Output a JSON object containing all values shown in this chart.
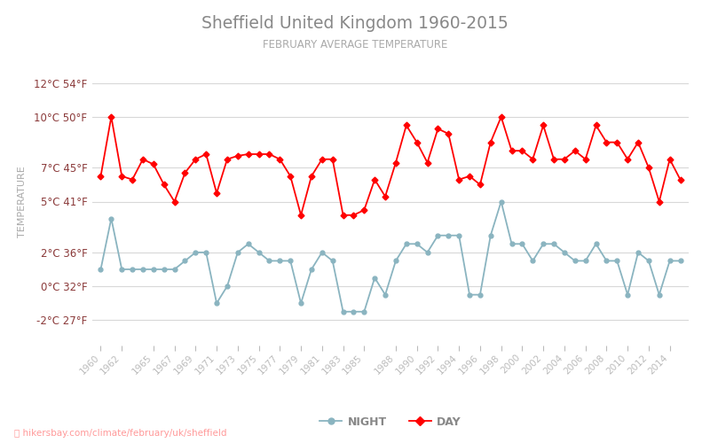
{
  "title": "Sheffield United Kingdom 1960-2015",
  "subtitle": "FEBRUARY AVERAGE TEMPERATURE",
  "ylabel": "TEMPERATURE",
  "watermark": "hikersbay.com/climate/february/uk/sheffield",
  "years": [
    1960,
    1961,
    1962,
    1963,
    1964,
    1965,
    1966,
    1967,
    1968,
    1969,
    1970,
    1971,
    1972,
    1973,
    1974,
    1975,
    1976,
    1977,
    1978,
    1979,
    1980,
    1981,
    1982,
    1983,
    1984,
    1985,
    1986,
    1987,
    1988,
    1989,
    1990,
    1991,
    1992,
    1993,
    1994,
    1995,
    1996,
    1997,
    1998,
    1999,
    2000,
    2001,
    2002,
    2003,
    2004,
    2005,
    2006,
    2007,
    2008,
    2009,
    2010,
    2011,
    2012,
    2013,
    2014,
    2015
  ],
  "day": [
    6.5,
    10.0,
    6.5,
    6.3,
    7.5,
    7.2,
    6.0,
    5.0,
    6.7,
    7.5,
    7.8,
    5.5,
    7.5,
    7.7,
    7.8,
    7.8,
    7.8,
    7.5,
    6.5,
    4.2,
    6.5,
    7.5,
    7.5,
    4.2,
    4.2,
    4.5,
    6.3,
    5.3,
    7.3,
    9.5,
    8.5,
    7.3,
    9.3,
    9.0,
    6.3,
    6.5,
    6.0,
    8.5,
    10.0,
    8.0,
    8.0,
    7.5,
    9.5,
    7.5,
    7.5,
    8.0,
    7.5,
    9.5,
    8.5,
    8.5,
    7.5,
    8.5,
    7.0,
    5.0,
    7.5,
    6.3
  ],
  "night": [
    1.0,
    4.0,
    1.0,
    1.0,
    1.0,
    1.0,
    1.0,
    1.0,
    1.5,
    2.0,
    2.0,
    -1.0,
    0.0,
    2.0,
    2.5,
    2.0,
    1.5,
    1.5,
    1.5,
    -1.0,
    1.0,
    2.0,
    1.5,
    -1.5,
    -1.5,
    -1.5,
    0.5,
    -0.5,
    1.5,
    2.5,
    2.5,
    2.0,
    3.0,
    3.0,
    3.0,
    -0.5,
    -0.5,
    3.0,
    5.0,
    2.5,
    2.5,
    1.5,
    2.5,
    2.5,
    2.0,
    1.5,
    1.5,
    2.5,
    1.5,
    1.5,
    -0.5,
    2.0,
    1.5,
    -0.5,
    1.5,
    1.5
  ],
  "day_color": "#ff0000",
  "night_color": "#8ab4c0",
  "background_color": "#ffffff",
  "grid_color": "#d8d8d8",
  "title_color": "#888888",
  "subtitle_color": "#aaaaaa",
  "ylabel_color": "#aaaaaa",
  "tick_label_color": "#8b3a3a",
  "xtick_label_color": "#9999aa",
  "legend_night": "NIGHT",
  "legend_day": "DAY",
  "yticks_c": [
    -2,
    0,
    2,
    5,
    7,
    10,
    12
  ],
  "yticks_f": [
    27,
    32,
    36,
    41,
    45,
    50,
    54
  ],
  "ymin": -3.5,
  "ymax": 13.5,
  "xtick_labels": [
    "1960",
    "1962",
    "1965",
    "1967",
    "1969",
    "1971",
    "1973",
    "1975",
    "1977",
    "1979",
    "1981",
    "1983",
    "1985",
    "1988",
    "1990",
    "1992",
    "1994",
    "1996",
    "1998",
    "2000",
    "2002",
    "2004",
    "2006",
    "2008",
    "2010",
    "2012",
    "2014"
  ]
}
